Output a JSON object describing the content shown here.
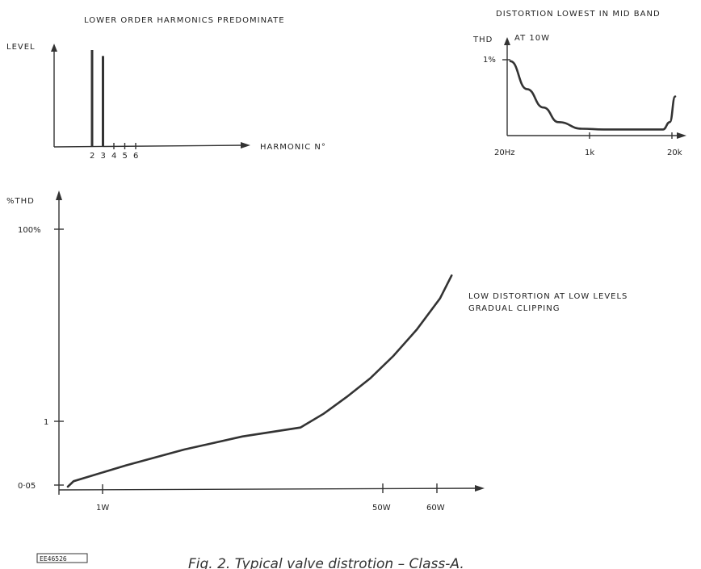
{
  "chart_data": [
    {
      "type": "bar",
      "title": "LOWER ORDER HARMONICS PREDOMINATE",
      "ylabel": "LEVEL",
      "xlabel": "HARMONIC N°",
      "categories": [
        "2",
        "3",
        "4",
        "5",
        "6"
      ],
      "values": [
        0.96,
        0.9,
        0,
        0,
        0
      ]
    },
    {
      "type": "line",
      "title": "DISTORTION LOWEST IN MID BAND",
      "ylabel": "THD",
      "annotation": "AT 10W",
      "ytick": "1%",
      "xticks": [
        "20Hz",
        "1k",
        "20k"
      ],
      "x": [
        20,
        40,
        80,
        150,
        400,
        1000,
        5000,
        12000,
        16000,
        20000
      ],
      "y": [
        0.98,
        0.6,
        0.35,
        0.15,
        0.06,
        0.05,
        0.05,
        0.05,
        0.15,
        0.5
      ]
    },
    {
      "type": "line",
      "ylabel": "%THD",
      "yticks": [
        "100%",
        "1",
        "0·05"
      ],
      "xticks": [
        "1W",
        "50W",
        "60W"
      ],
      "annotation": [
        "LOW DISTORTION AT LOW LEVELS",
        "GRADUAL CLIPPING"
      ],
      "x": [
        0,
        1,
        10,
        20,
        30,
        40,
        44,
        48,
        52,
        56,
        60,
        64,
        66
      ],
      "y": [
        0.05,
        0.13,
        0.36,
        0.59,
        0.78,
        0.91,
        1.2,
        1.8,
        2.8,
        4.8,
        9,
        19,
        33
      ]
    }
  ],
  "caption": "Fig. 2. Typical valve distrotion – Class-A.",
  "figure_id": "EE46526"
}
